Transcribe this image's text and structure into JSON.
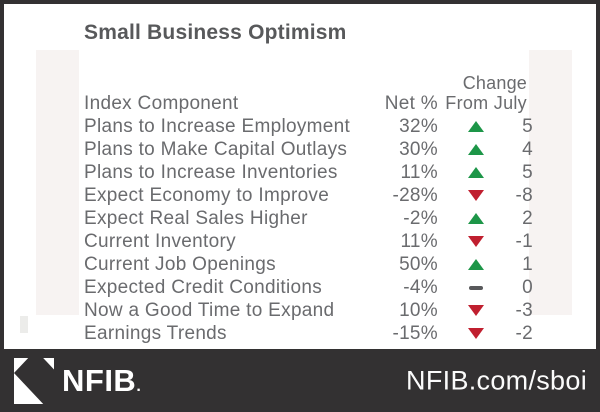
{
  "title": "Small Business Optimism",
  "table": {
    "header": {
      "component": "Index Component",
      "net": "Net %",
      "change_line1": "Change",
      "change_line2": "From July"
    },
    "rows": [
      {
        "component": "Plans to Increase Employment",
        "net": "32%",
        "direction": "up",
        "change": "5"
      },
      {
        "component": "Plans to Make Capital Outlays",
        "net": "30%",
        "direction": "up",
        "change": "4"
      },
      {
        "component": "Plans to Increase Inventories",
        "net": "11%",
        "direction": "up",
        "change": "5"
      },
      {
        "component": "Expect Economy to Improve",
        "net": "-28%",
        "direction": "down",
        "change": "-8"
      },
      {
        "component": "Expect Real Sales Higher",
        "net": "-2%",
        "direction": "up",
        "change": "2"
      },
      {
        "component": "Current Inventory",
        "net": "11%",
        "direction": "down",
        "change": "-1"
      },
      {
        "component": "Current Job Openings",
        "net": "50%",
        "direction": "up",
        "change": "1"
      },
      {
        "component": "Expected Credit Conditions",
        "net": "-4%",
        "direction": "flat",
        "change": "0"
      },
      {
        "component": "Now a Good Time to Expand",
        "net": "10%",
        "direction": "down",
        "change": "-3"
      },
      {
        "component": "Earnings Trends",
        "net": "-15%",
        "direction": "down",
        "change": "-2"
      }
    ]
  },
  "footer": {
    "logo_text": "NFIB",
    "logo_suffix": ".",
    "url": "NFIB.com/sboi"
  },
  "colors": {
    "up": "#1d9648",
    "down": "#c01f2f",
    "flat": "#58595b",
    "frame": "#333132",
    "accent_strip": "#f7f3f2",
    "title_text": "#58595b",
    "body_text": "#6a6b6e"
  },
  "chart_data": {
    "type": "table",
    "title": "Small Business Optimism",
    "columns": [
      "Index Component",
      "Net %",
      "Change From July"
    ],
    "rows": [
      [
        "Plans to Increase Employment",
        32,
        5
      ],
      [
        "Plans to Make Capital Outlays",
        30,
        4
      ],
      [
        "Plans to Increase Inventories",
        11,
        5
      ],
      [
        "Expect Economy to Improve",
        -28,
        -8
      ],
      [
        "Expect Real Sales Higher",
        -2,
        2
      ],
      [
        "Current Inventory",
        11,
        -1
      ],
      [
        "Current Job Openings",
        50,
        1
      ],
      [
        "Expected Credit Conditions",
        -4,
        0
      ],
      [
        "Now a Good Time to Expand",
        10,
        -3
      ],
      [
        "Earnings Trends",
        -15,
        -2
      ]
    ],
    "notes": "Change column shown with green up triangle (positive), red down triangle (negative), gray dash (zero)"
  }
}
